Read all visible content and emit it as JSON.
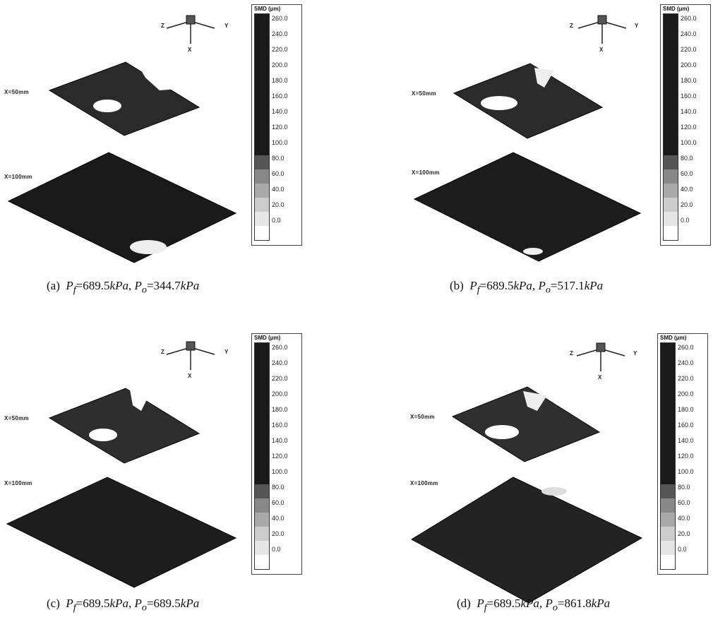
{
  "colorbar": {
    "title": "SMD (μm)",
    "ticks": [
      "260.0",
      "240.0",
      "220.0",
      "200.0",
      "180.0",
      "160.0",
      "140.0",
      "120.0",
      "100.0",
      "80.0",
      "60.0",
      "40.0",
      "20.0",
      "0.0"
    ]
  },
  "axes": {
    "z": "Z",
    "y": "Y",
    "x": "X"
  },
  "planes": {
    "near": "X=50mm",
    "far": "X=100mm"
  },
  "panels": [
    {
      "caption_prefix": "(a)",
      "pf": "=689.5",
      "po": "=344.7",
      "unit": "kPa"
    },
    {
      "caption_prefix": "(b)",
      "pf": "=689.5",
      "po": "=517.1",
      "unit": "kPa"
    },
    {
      "caption_prefix": "(c)",
      "pf": "=689.5",
      "po": "=689.5",
      "unit": "kPa"
    },
    {
      "caption_prefix": "(d)",
      "pf": "=689.5",
      "po": "=861.8",
      "unit": "kPa"
    }
  ],
  "symbols": {
    "pf": "P",
    "pf_sub": "f",
    "po": "P",
    "po_sub": "o"
  }
}
